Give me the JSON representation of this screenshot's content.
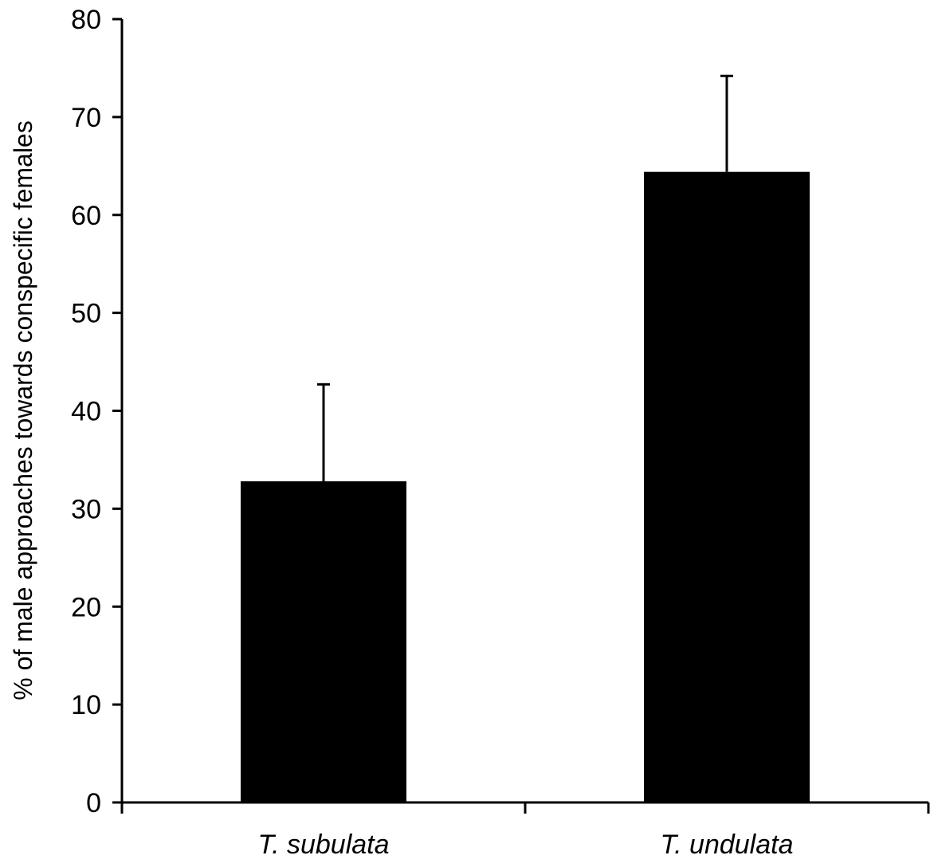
{
  "chart_data": {
    "type": "bar",
    "title": "",
    "xlabel": "",
    "ylabel": "% of male approaches towards conspecific females",
    "categories": [
      "T. subulata",
      "T. undulata"
    ],
    "values": [
      32.8,
      64.4
    ],
    "error_upper": [
      42.7,
      74.2
    ],
    "ylim": [
      0,
      80
    ],
    "yticks": [
      0,
      10,
      20,
      30,
      40,
      50,
      60,
      70,
      80
    ],
    "grid": false,
    "legend": "none",
    "bar_color": "#000000"
  }
}
